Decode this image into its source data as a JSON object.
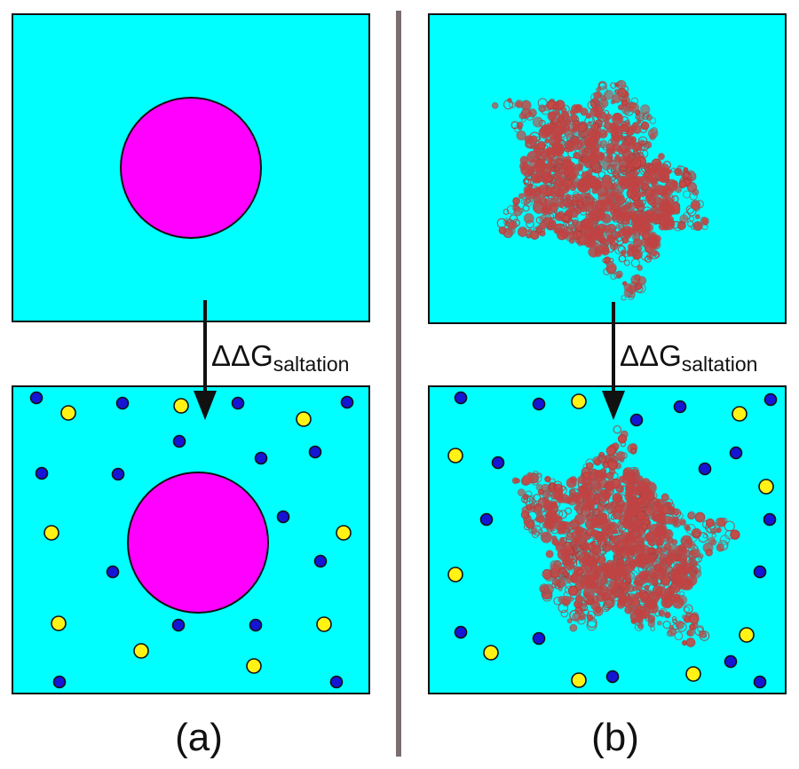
{
  "panels": [
    {
      "id": "a",
      "caption": "(a)",
      "solute": "sphere",
      "transition_label": {
        "main": "ΔΔG",
        "subscript": "saltation"
      }
    },
    {
      "id": "b",
      "caption": "(b)",
      "solute": "protein",
      "transition_label": {
        "main": "ΔΔG",
        "subscript": "saltation"
      }
    }
  ],
  "colors": {
    "solvent": "#00FFFF",
    "sphere": "#FF00FF",
    "protein": "#C44A47",
    "cation": "#1515D5",
    "anion": "#FFF214",
    "divider": "#7B6E6E",
    "outline": "#111111"
  }
}
